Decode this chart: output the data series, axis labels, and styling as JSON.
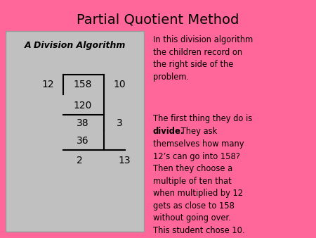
{
  "title": "Partial Quotient Method",
  "title_fontsize": 14,
  "bg_color": "#FF6699",
  "box_color": "#C0C0C0",
  "text_color": "#000000",
  "box_label": "A Division Algorithm",
  "division_layout": {
    "divisor": "12",
    "dividend": "158",
    "partial1": "120",
    "partial1_quot": "10",
    "remainder1": "38",
    "partial2": "36",
    "partial2_quot": "3",
    "remainder2": "2",
    "total_quot": "13"
  },
  "para1": "In this division algorithm\nthe children record on\nthe right side of the\nproblem.",
  "para2_line1": "The first thing they do is",
  "para2_line2_bold": "divide.",
  "para2_line2_normal": " They ask",
  "para2_rest": "themselves how many\n12’s can go into 158?\nThen they choose a\nmultiple of ten that\nwhen multiplied by 12\ngets as close to 158\nwithout going over.\nThis student chose 10.",
  "fig_width": 4.5,
  "fig_height": 3.38,
  "dpi": 100
}
